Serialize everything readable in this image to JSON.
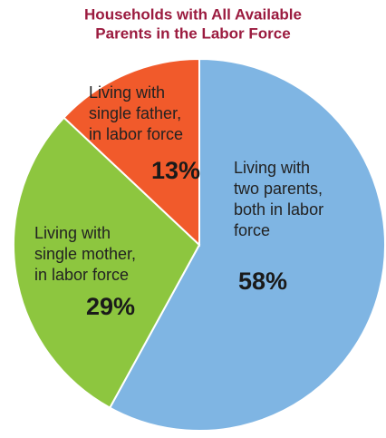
{
  "chart_data": {
    "type": "pie",
    "title": [
      "Households with All Available",
      "Parents in the Labor Force"
    ],
    "categories": [
      [
        "Living with",
        "two parents,",
        "both in labor",
        "force"
      ],
      [
        "Living with",
        "single mother,",
        "in labor force"
      ],
      [
        "Living with",
        "single father,",
        "in labor force"
      ]
    ],
    "values": [
      58,
      29,
      13
    ],
    "value_labels": [
      "58%",
      "29%",
      "13%"
    ],
    "colors": [
      "#7fb5e3",
      "#8dc63f",
      "#f15a2b"
    ]
  }
}
